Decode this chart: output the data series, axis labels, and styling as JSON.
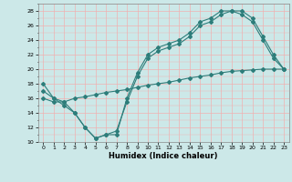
{
  "title": "",
  "xlabel": "Humidex (Indice chaleur)",
  "xlim": [
    -0.5,
    23.5
  ],
  "ylim": [
    10,
    29
  ],
  "yticks": [
    10,
    12,
    14,
    16,
    18,
    20,
    22,
    24,
    26,
    28
  ],
  "xticks": [
    0,
    1,
    2,
    3,
    4,
    5,
    6,
    7,
    8,
    9,
    10,
    11,
    12,
    13,
    14,
    15,
    16,
    17,
    18,
    19,
    20,
    21,
    22,
    23
  ],
  "bg_color": "#cce8e8",
  "line_color": "#2d7d7a",
  "grid_major_color": "#f0b0b0",
  "grid_minor_color": "#e8d0d0",
  "line1_x": [
    0,
    1,
    2,
    3,
    4,
    5,
    6,
    7,
    8,
    9,
    10,
    11,
    12,
    13,
    14,
    15,
    16,
    17,
    18,
    19,
    20,
    21,
    22,
    23
  ],
  "line1_y": [
    18,
    16,
    15,
    14,
    12,
    10.5,
    11,
    11,
    16,
    19.5,
    22,
    23,
    23.5,
    24,
    25,
    26.5,
    27,
    28,
    28,
    28,
    27,
    24.5,
    22,
    20
  ],
  "line2_x": [
    0,
    1,
    2,
    3,
    4,
    5,
    6,
    7,
    8,
    9,
    10,
    11,
    12,
    13,
    14,
    15,
    16,
    17,
    18,
    19,
    20,
    21,
    22,
    23
  ],
  "line2_y": [
    16,
    15.5,
    15.5,
    16,
    16.2,
    16.5,
    16.8,
    17,
    17.2,
    17.5,
    17.8,
    18,
    18.2,
    18.5,
    18.8,
    19,
    19.2,
    19.5,
    19.7,
    19.8,
    19.9,
    20,
    20,
    20
  ],
  "line3_x": [
    0,
    1,
    2,
    3,
    4,
    5,
    6,
    7,
    8,
    9,
    10,
    11,
    12,
    13,
    14,
    15,
    16,
    17,
    18,
    19,
    20,
    21,
    22,
    23
  ],
  "line3_y": [
    17,
    16,
    15.5,
    14,
    12,
    10.5,
    11,
    11.5,
    15.5,
    19,
    21.5,
    22.5,
    23,
    23.5,
    24.5,
    26,
    26.5,
    27.5,
    28,
    27.5,
    26.5,
    24,
    21.5,
    20
  ]
}
